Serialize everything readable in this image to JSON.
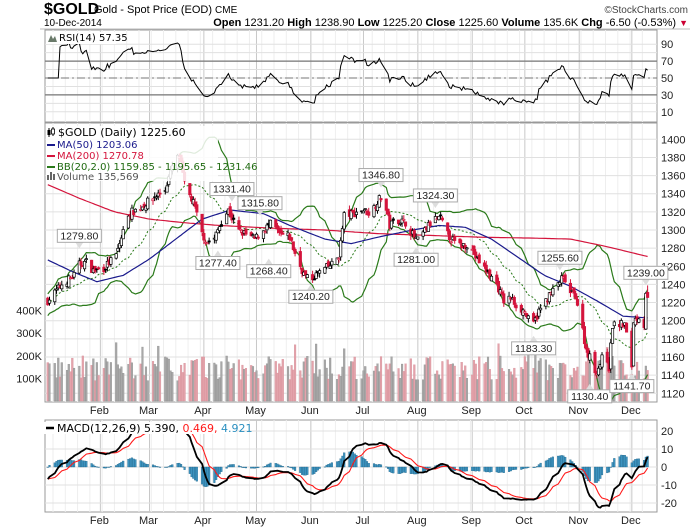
{
  "header": {
    "symbol": "$GOLD",
    "name": "Gold - Spot Price (EOD)",
    "exchange": "CME",
    "copyright": "©StockCharts.com",
    "date": "10-Dec-2014",
    "quote": [
      {
        "label": "Open",
        "value": "1231.20"
      },
      {
        "label": "High",
        "value": "1238.90"
      },
      {
        "label": "Low",
        "value": "1225.20"
      },
      {
        "label": "Close",
        "value": "1225.60"
      },
      {
        "label": "Volume",
        "value": "135.6K"
      }
    ],
    "chg_label": "Chg",
    "chg_value": "-6.50 (-0.53%)",
    "chg_color": "#cc0033"
  },
  "rsi": {
    "label": "RSI(14) 57.35"
  },
  "main": {
    "legend": {
      "price": "$GOLD (Daily) 1225.60",
      "ma50": "MA(50) 1203.06",
      "ma200": "MA(200) 1270.78",
      "bb": "BB(20,2.0) 1159.85 - 1195.65 - 1231.46",
      "volume": "Volume 135,569"
    }
  },
  "macd": {
    "label_prefix": "MACD(12,26,9)",
    "macd_value": "5.390,",
    "signal_value": "0.469,",
    "hist_value": "4.921"
  },
  "colors": {
    "up": "#000000",
    "down": "#d4143c",
    "ma50": "#1a1a8c",
    "ma200": "#d4143c",
    "bb": "#2a7a1a",
    "volume_up": "#a8a8a8",
    "volume_down": "#e3a3ab",
    "macd": "#000000",
    "signal": "#ff1a1a",
    "histogram": "#3d93bf"
  },
  "chart_data": {
    "type": "candlestick",
    "title": "$GOLD Gold - Spot Price (EOD) CME",
    "year": 2014,
    "x_unit": "day-of-year",
    "months": [
      {
        "label": "Feb",
        "doy": 32
      },
      {
        "label": "Mar",
        "doy": 60
      },
      {
        "label": "Apr",
        "doy": 91
      },
      {
        "label": "May",
        "doy": 121
      },
      {
        "label": "Jun",
        "doy": 152
      },
      {
        "label": "Jul",
        "doy": 182
      },
      {
        "label": "Aug",
        "doy": 213
      },
      {
        "label": "Sep",
        "doy": 244
      },
      {
        "label": "Oct",
        "doy": 274
      },
      {
        "label": "Nov",
        "doy": 305
      },
      {
        "label": "Dec",
        "doy": 335
      }
    ],
    "price_ticks": [
      1400,
      1380,
      1360,
      1340,
      1320,
      1300,
      1280,
      1260,
      1240,
      1220,
      1200,
      1180,
      1160,
      1140,
      1120
    ],
    "price_range": [
      1110,
      1410
    ],
    "volume_ticks": [
      {
        "label": "400K",
        "v": 400000
      },
      {
        "label": "300K",
        "v": 300000
      },
      {
        "label": "200K",
        "v": 200000
      },
      {
        "label": "100K",
        "v": 100000
      }
    ],
    "rsi_ticks": [
      90,
      70,
      50,
      30,
      10
    ],
    "rsi_levels": {
      "overbought": 70,
      "mid": 50,
      "oversold": 30
    },
    "macd_ticks": [
      20,
      10,
      0,
      -10,
      -20
    ],
    "close_keypoints": [
      [
        2,
        1222
      ],
      [
        10,
        1240
      ],
      [
        17,
        1250
      ],
      [
        20,
        1262
      ],
      [
        24,
        1265
      ],
      [
        28,
        1255
      ],
      [
        34,
        1258
      ],
      [
        41,
        1272
      ],
      [
        48,
        1318
      ],
      [
        55,
        1325
      ],
      [
        62,
        1335
      ],
      [
        69,
        1345
      ],
      [
        73,
        1370
      ],
      [
        77,
        1382
      ],
      [
        80,
        1350
      ],
      [
        85,
        1330
      ],
      [
        90,
        1296
      ],
      [
        93,
        1286
      ],
      [
        97,
        1290
      ],
      [
        100,
        1305
      ],
      [
        105,
        1322
      ],
      [
        110,
        1300
      ],
      [
        115,
        1295
      ],
      [
        120,
        1290
      ],
      [
        125,
        1300
      ],
      [
        130,
        1308
      ],
      [
        134,
        1295
      ],
      [
        140,
        1292
      ],
      [
        144,
        1268
      ],
      [
        148,
        1252
      ],
      [
        151,
        1244
      ],
      [
        158,
        1255
      ],
      [
        164,
        1262
      ],
      [
        168,
        1272
      ],
      [
        171,
        1316
      ],
      [
        176,
        1318
      ],
      [
        182,
        1322
      ],
      [
        186,
        1318
      ],
      [
        190,
        1332
      ],
      [
        193,
        1338
      ],
      [
        197,
        1305
      ],
      [
        201,
        1312
      ],
      [
        206,
        1308
      ],
      [
        211,
        1292
      ],
      [
        213,
        1288
      ],
      [
        218,
        1302
      ],
      [
        222,
        1312
      ],
      [
        226,
        1312
      ],
      [
        230,
        1295
      ],
      [
        236,
        1282
      ],
      [
        242,
        1285
      ],
      [
        246,
        1270
      ],
      [
        252,
        1255
      ],
      [
        258,
        1240
      ],
      [
        262,
        1222
      ],
      [
        266,
        1225
      ],
      [
        270,
        1215
      ],
      [
        274,
        1210
      ],
      [
        278,
        1192
      ],
      [
        282,
        1210
      ],
      [
        287,
        1225
      ],
      [
        292,
        1238
      ],
      [
        295,
        1246
      ],
      [
        297,
        1244
      ],
      [
        300,
        1230
      ],
      [
        303,
        1228
      ],
      [
        306,
        1200
      ],
      [
        309,
        1168
      ],
      [
        311,
        1160
      ],
      [
        313,
        1142
      ],
      [
        316,
        1148
      ],
      [
        320,
        1168
      ],
      [
        322,
        1148
      ],
      [
        324,
        1195
      ],
      [
        327,
        1196
      ],
      [
        331,
        1196
      ],
      [
        335,
        1150
      ],
      [
        336,
        1200
      ],
      [
        339,
        1205
      ],
      [
        342,
        1195
      ],
      [
        343,
        1232
      ],
      [
        344,
        1225.6
      ]
    ],
    "last_bar": {
      "open": 1231.2,
      "high": 1238.9,
      "low": 1225.2,
      "close": 1225.6,
      "volume": 135569
    },
    "ma50_keypoints": [
      [
        2,
        1267
      ],
      [
        15,
        1255
      ],
      [
        30,
        1243
      ],
      [
        45,
        1250
      ],
      [
        60,
        1268
      ],
      [
        75,
        1290
      ],
      [
        90,
        1312
      ],
      [
        106,
        1322
      ],
      [
        125,
        1318
      ],
      [
        140,
        1305
      ],
      [
        160,
        1290
      ],
      [
        175,
        1285
      ],
      [
        190,
        1292
      ],
      [
        210,
        1300
      ],
      [
        225,
        1305
      ],
      [
        240,
        1303
      ],
      [
        255,
        1290
      ],
      [
        270,
        1270
      ],
      [
        285,
        1250
      ],
      [
        300,
        1238
      ],
      [
        315,
        1222
      ],
      [
        330,
        1205
      ],
      [
        344,
        1203.06
      ]
    ],
    "ma200_keypoints": [
      [
        2,
        1350
      ],
      [
        20,
        1335
      ],
      [
        40,
        1320
      ],
      [
        60,
        1312
      ],
      [
        80,
        1308
      ],
      [
        100,
        1305
      ],
      [
        130,
        1302
      ],
      [
        160,
        1300
      ],
      [
        190,
        1296
      ],
      [
        220,
        1294
      ],
      [
        250,
        1292
      ],
      [
        280,
        1291
      ],
      [
        300,
        1290
      ],
      [
        320,
        1282
      ],
      [
        344,
        1270.78
      ]
    ],
    "annotations": [
      {
        "doy": 20,
        "price": 1279.8,
        "kind": "high",
        "text": "1279.80"
      },
      {
        "doy": 99,
        "price": 1277.4,
        "kind": "low",
        "text": "1277.40"
      },
      {
        "doy": 107,
        "price": 1331.4,
        "kind": "high",
        "text": "1331.40"
      },
      {
        "doy": 123,
        "price": 1315.8,
        "kind": "high",
        "text": "1315.80"
      },
      {
        "doy": 128,
        "price": 1268.4,
        "kind": "low",
        "text": "1268.40"
      },
      {
        "doy": 152,
        "price": 1240.2,
        "kind": "low",
        "text": "1240.20"
      },
      {
        "doy": 192,
        "price": 1346.8,
        "kind": "high",
        "text": "1346.80"
      },
      {
        "doy": 212,
        "price": 1281.0,
        "kind": "low",
        "text": "1281.00"
      },
      {
        "doy": 223,
        "price": 1324.3,
        "kind": "high",
        "text": "1324.30"
      },
      {
        "doy": 279,
        "price": 1183.3,
        "kind": "low",
        "text": "1183.30"
      },
      {
        "doy": 294,
        "price": 1255.6,
        "kind": "high",
        "text": "1255.60"
      },
      {
        "doy": 311,
        "price": 1130.4,
        "kind": "low",
        "text": "1130.40"
      },
      {
        "doy": 335,
        "price": 1141.7,
        "kind": "low",
        "text": "1141.70"
      },
      {
        "doy": 343,
        "price": 1239.0,
        "kind": "high",
        "text": "1239.00"
      }
    ]
  }
}
